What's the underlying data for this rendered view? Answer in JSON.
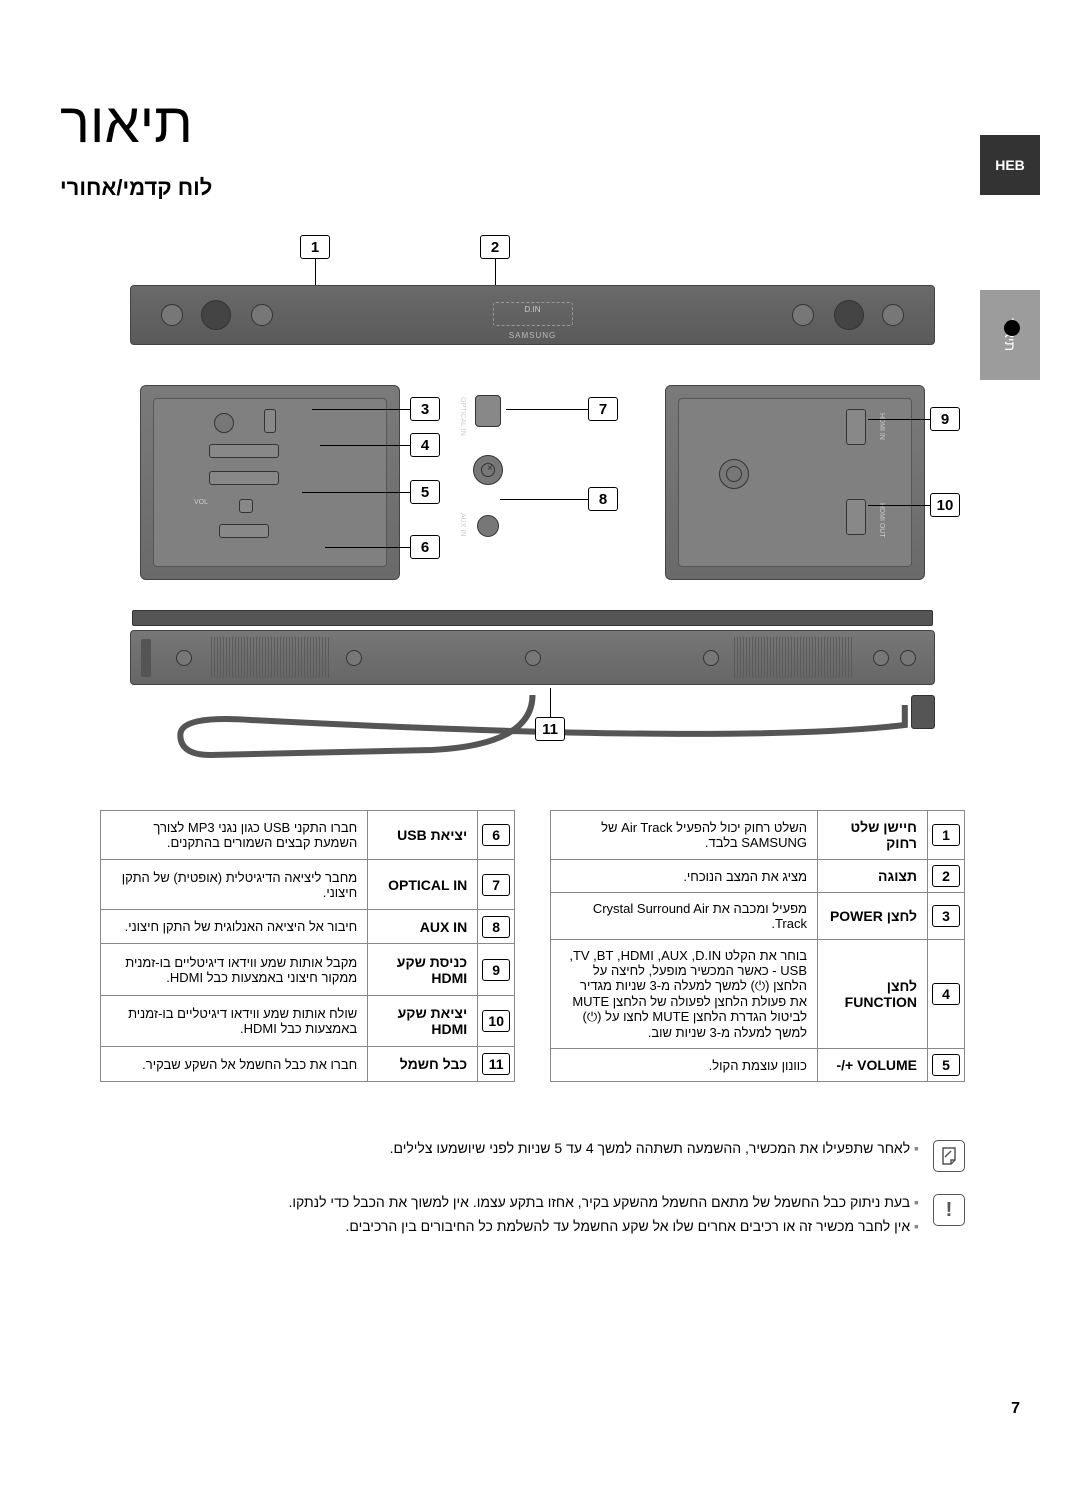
{
  "page": {
    "title": "תיאור",
    "subtitle": "לוח קדמי/אחורי",
    "lang_tab": "HEB",
    "side_label": "תיאור",
    "page_number": "7"
  },
  "diagram": {
    "din_label": "D.IN",
    "brand": "SAMSUNG",
    "left_ports": {
      "optical": "OPTICAL IN",
      "aux": "AUX IN"
    },
    "right_ports": {
      "hdmi_in": "HDMI IN",
      "hdmi_out": "HDMI OUT"
    },
    "callouts": [
      "1",
      "2",
      "3",
      "4",
      "5",
      "6",
      "7",
      "8",
      "9",
      "10",
      "11"
    ]
  },
  "columns": {
    "right": [
      {
        "num": "1",
        "label": "חיישן שלט רחוק",
        "desc": "השלט רחוק יכול להפעיל Air Track של SAMSUNG בלבד."
      },
      {
        "num": "2",
        "label": "תצוגה",
        "desc": "מציג את המצב הנוכחי."
      },
      {
        "num": "3",
        "label": "לחצן POWER",
        "desc": "מפעיל ומכבה את Crystal Surround Air Track."
      },
      {
        "num": "4",
        "label": "לחצן FUNCTION",
        "desc": "בוחר את הקלט D.IN, ‏AUX, ‏HDMI, ‏BT, ‏TV, ‏USB\n- כאשר המכשיר מופעל, לחיצה על הלחצן (⏻) למשך למעלה מ-3 שניות מגדיר את פעולת הלחצן לפעולה של הלחצן MUTE לביטול הגדרת הלחצן MUTE לחצו על (⏻) למשך למעלה מ-3 שניות שוב."
      },
      {
        "num": "5",
        "label": "VOLUME +/-",
        "desc": "כוונון עוצמת הקול."
      }
    ],
    "left": [
      {
        "num": "6",
        "label": "יציאת USB",
        "desc": "חברו התקני USB כגון נגני MP3 לצורך השמעת קבצים השמורים בהתקנים."
      },
      {
        "num": "7",
        "label": "OPTICAL IN",
        "desc": "מחבר ליציאה הדיגיטלית (אופטית) של התקן חיצוני."
      },
      {
        "num": "8",
        "label": "AUX IN",
        "desc": "חיבור אל היציאה האנלוגית של התקן חיצוני."
      },
      {
        "num": "9",
        "label": "כניסת שקע HDMI",
        "desc": "מקבל אותות שמע ווידאו דיגיטליים בו-זמנית ממקור חיצוני באמצעות כבל HDMI."
      },
      {
        "num": "10",
        "label": "יציאת שקע HDMI",
        "desc": "שולח אותות שמע ווידאו דיגיטליים בו-זמנית באמצעות כבל HDMI."
      },
      {
        "num": "11",
        "label": "כבל חשמל",
        "desc": "חברו את כבל החשמל אל השקע שבקיר."
      }
    ]
  },
  "notes": {
    "info": "לאחר שתפעילו את המכשיר, ההשמעה תשתהה למשך 4 עד 5 שניות לפני שיושמעו צלילים.",
    "warn1": "בעת ניתוק כבל החשמל של מתאם החשמל מהשקע בקיר, אחזו בתקע עצמו. אין למשוך את הכבל כדי לנתקו.",
    "warn2": "אין לחבר מכשיר זה או רכיבים אחרים שלו אל שקע החשמל עד להשלמת כל החיבורים בין הרכיבים."
  },
  "style": {
    "callout_border": "#000000",
    "panel_bg": "#707070",
    "bar_bg": "#666666",
    "table_border": "#888888",
    "page_bg": "#ffffff"
  }
}
